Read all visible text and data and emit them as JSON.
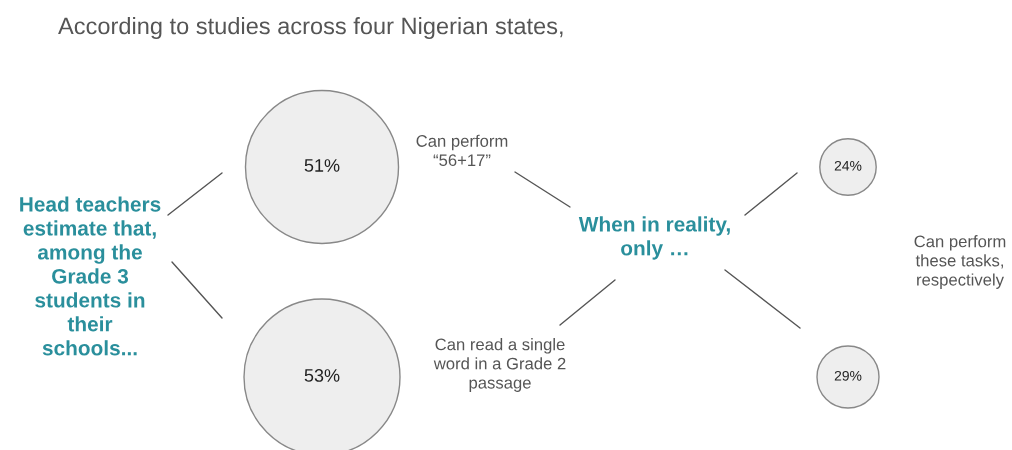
{
  "chart_data": {
    "type": "other",
    "title": "According to studies across four Nigerian states,",
    "categories": [
      "Can perform\n“56+17”",
      "Can read a single\nword in a Grade 2\npassage"
    ],
    "series": [
      {
        "color": "#eeeeee",
        "values": [
          51,
          53
        ],
        "value_labels": [
          "51%",
          "53%"
        ]
      },
      {
        "color": "#eeeeee",
        "values": [
          24,
          29
        ],
        "value_labels": [
          "24%",
          "29%"
        ]
      }
    ],
    "annotations": [
      "Head teachers\nestimate that,\namong the\nGrade 3\nstudents in\ntheir\nschools...",
      "When in reality,\nonly …",
      "Can perform\nthese tasks,\nrespectively"
    ]
  }
}
